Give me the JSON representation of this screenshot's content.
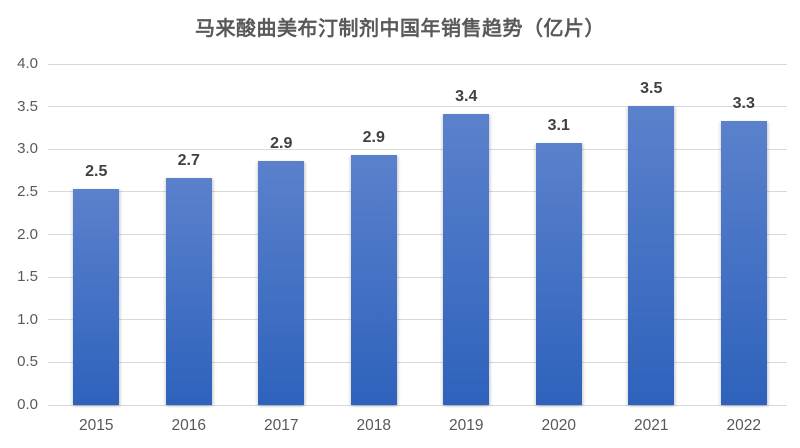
{
  "chart_data": {
    "type": "bar",
    "title": "马来酸曲美布汀制剂中国年销售趋势（亿片）",
    "xlabel": "",
    "ylabel": "",
    "categories": [
      "2015",
      "2016",
      "2017",
      "2018",
      "2019",
      "2020",
      "2021",
      "2022"
    ],
    "values": [
      2.5,
      2.7,
      2.9,
      2.9,
      3.4,
      3.1,
      3.5,
      3.3
    ],
    "value_labels": [
      "2.5",
      "2.7",
      "2.9",
      "2.9",
      "3.4",
      "3.1",
      "3.5",
      "3.3"
    ],
    "precise_bar_heights": [
      2.53,
      2.66,
      2.86,
      2.93,
      3.41,
      3.07,
      3.51,
      3.33
    ],
    "ylim": [
      0.0,
      4.0
    ],
    "ytick_step": 0.5,
    "yticks": [
      "0.0",
      "0.5",
      "1.0",
      "1.5",
      "2.0",
      "2.5",
      "3.0",
      "3.5",
      "4.0"
    ],
    "grid": true,
    "legend": "none",
    "data_label_position": "outside-end",
    "colors": {
      "background": "#ffffff",
      "bar_gradient_top": "#5b81cc",
      "bar_gradient_bottom": "#2e62bc",
      "gridline": "#d9d9d9",
      "axis_text": "#595959",
      "title_text": "#595959",
      "data_label_text": "#404040"
    }
  }
}
